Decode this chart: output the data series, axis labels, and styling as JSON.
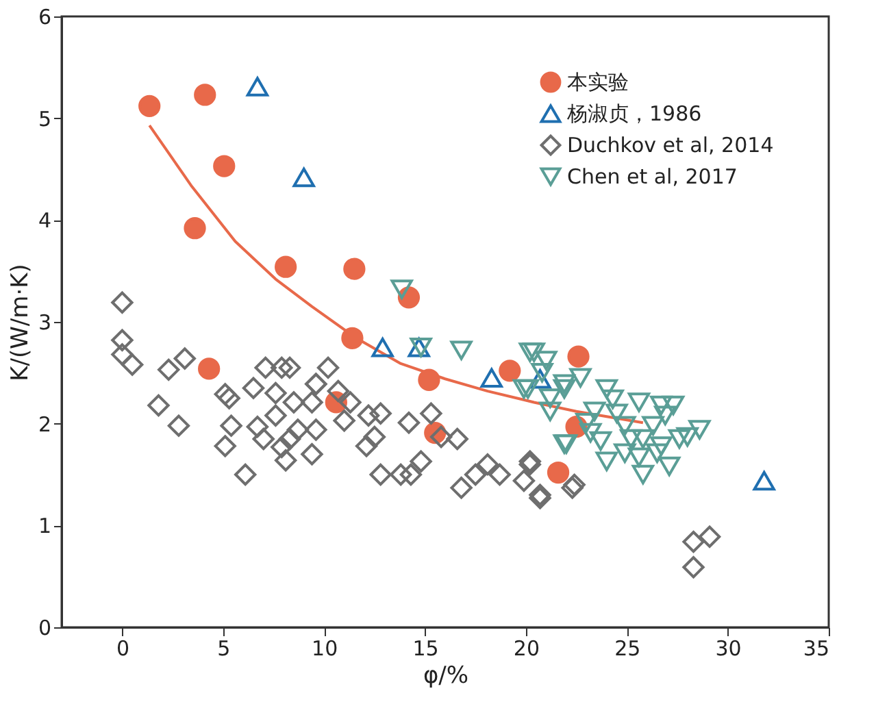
{
  "chart_data": {
    "type": "scatter",
    "xlabel": "φ/%",
    "ylabel": "K/(W/m·K)",
    "xlim": [
      -3,
      35
    ],
    "ylim": [
      0,
      6
    ],
    "xticks": [
      0,
      5,
      10,
      15,
      20,
      25,
      30,
      35
    ],
    "yticks": [
      0,
      1,
      2,
      3,
      4,
      5,
      6
    ],
    "grid": false,
    "legend": "top right",
    "series": [
      {
        "name": "本实验",
        "color": "#e8694a",
        "marker": "circle",
        "x": [
          1.35,
          4.1,
          5.05,
          3.6,
          8.1,
          11.5,
          14.2,
          11.4,
          4.3,
          10.6,
          15.2,
          15.5,
          19.2,
          22.6,
          22.5,
          21.6
        ],
        "values": [
          5.12,
          5.23,
          4.53,
          3.92,
          3.54,
          3.52,
          3.24,
          2.84,
          2.54,
          2.21,
          2.43,
          1.91,
          2.52,
          2.66,
          1.97,
          1.52
        ]
      },
      {
        "name": "杨淑贞，1986",
        "color": "#1f6fb0",
        "marker": "triangle",
        "x": [
          6.7,
          9.0,
          12.9,
          14.7,
          18.3,
          20.7,
          31.8
        ],
        "values": [
          5.31,
          4.42,
          2.75,
          2.75,
          2.45,
          2.44,
          1.44
        ]
      },
      {
        "name": "Duchkov et al, 2014",
        "color": "#6e6e6e",
        "marker": "diamond",
        "x": [
          0.0,
          0.0,
          0.0,
          0.5,
          1.8,
          2.3,
          3.1,
          2.8,
          5.1,
          5.3,
          5.1,
          5.4,
          6.1,
          6.5,
          7.1,
          7.9,
          8.3,
          7.6,
          8.5,
          9.4,
          9.6,
          6.7,
          7.0,
          7.6,
          7.9,
          8.1,
          8.3,
          8.7,
          9.4,
          9.6,
          10.2,
          9.6,
          10.7,
          11.3,
          11.0,
          12.2,
          12.8,
          12.1,
          12.5,
          14.2,
          15.3,
          15.8,
          16.6,
          12.8,
          13.8,
          14.3,
          14.8,
          16.8,
          17.5,
          18.1,
          18.7,
          19.9,
          20.2,
          20.7,
          22.3,
          20.2,
          20.7,
          22.4,
          28.3,
          29.1,
          28.3
        ],
        "values": [
          3.19,
          2.82,
          2.68,
          2.58,
          2.18,
          2.53,
          2.64,
          1.98,
          2.29,
          2.25,
          1.78,
          1.98,
          1.5,
          2.35,
          2.55,
          2.55,
          2.55,
          2.3,
          2.21,
          2.21,
          2.39,
          1.97,
          1.85,
          2.08,
          1.77,
          1.64,
          1.85,
          1.94,
          1.7,
          1.94,
          2.55,
          2.39,
          2.32,
          2.21,
          2.03,
          2.08,
          2.1,
          1.78,
          1.87,
          2.01,
          2.1,
          1.87,
          1.85,
          1.5,
          1.5,
          1.5,
          1.63,
          1.37,
          1.5,
          1.6,
          1.5,
          1.44,
          1.63,
          1.27,
          1.37,
          1.6,
          1.3,
          1.4,
          0.84,
          0.89,
          0.59
        ]
      },
      {
        "name": "Chen et al, 2017",
        "color": "#5a9e96",
        "marker": "triangle-down",
        "x": [
          13.85,
          14.8,
          16.8,
          20.2,
          21.0,
          21.9,
          22.7,
          19.9,
          21.2,
          24.0,
          24.3,
          25.6,
          26.7,
          27.3,
          22.0,
          23.2,
          23.7,
          24.0,
          24.9,
          25.8,
          25.6,
          26.5,
          27.1,
          27.6,
          28.6,
          28.0,
          24.9,
          26.3,
          26.9,
          23.4,
          24.5,
          23.0,
          25.8,
          26.7,
          25.2,
          20.4,
          20.1,
          21.2,
          21.9,
          21.9,
          20.8
        ],
        "values": [
          3.32,
          2.75,
          2.72,
          2.7,
          2.62,
          2.39,
          2.45,
          2.34,
          2.25,
          2.34,
          2.24,
          2.21,
          2.18,
          2.18,
          1.8,
          1.91,
          1.83,
          1.63,
          1.71,
          1.5,
          1.67,
          1.71,
          1.58,
          1.85,
          1.94,
          1.87,
          1.98,
          1.98,
          2.08,
          2.12,
          2.1,
          2.01,
          1.85,
          1.78,
          1.85,
          2.7,
          2.34,
          2.12,
          1.8,
          2.34,
          2.5
        ]
      },
      {
        "type": "line",
        "color": "#e8694a",
        "x": [
          1.35,
          3.45,
          5.6,
          7.6,
          9.4,
          11.6,
          13.8,
          16.0,
          18.1,
          20.4,
          22.5,
          25.8
        ],
        "values": [
          4.93,
          4.33,
          3.79,
          3.42,
          3.15,
          2.84,
          2.59,
          2.44,
          2.32,
          2.21,
          2.12,
          2.01
        ]
      }
    ]
  }
}
